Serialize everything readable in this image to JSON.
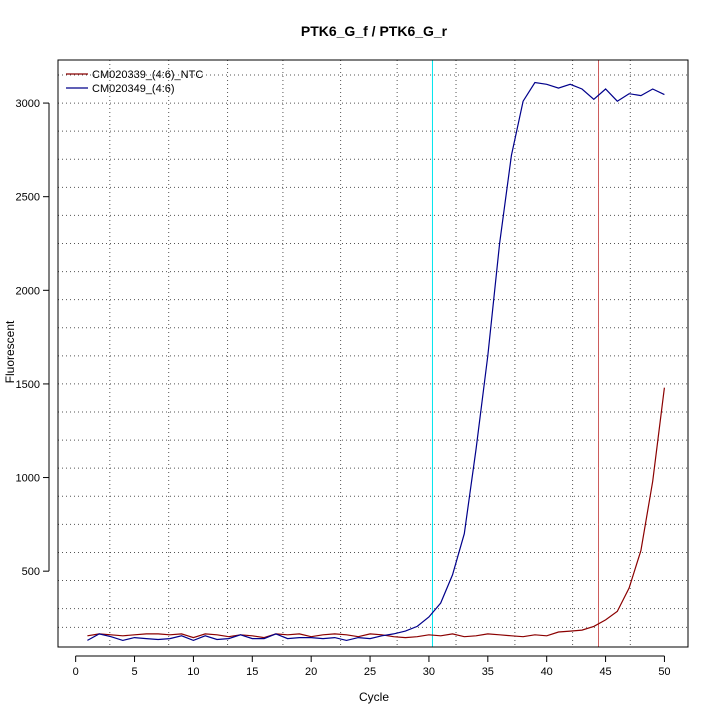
{
  "chart_data": {
    "type": "line",
    "title": "PTK6_G_f / PTK6_G_r",
    "xlabel": "Cycle",
    "ylabel": "Fluorescent",
    "xlim": [
      -1.5,
      52
    ],
    "ylim": [
      95,
      3230
    ],
    "x_ticks": [
      0,
      5,
      10,
      15,
      20,
      25,
      30,
      35,
      40,
      45,
      50
    ],
    "y_ticks": [
      500,
      1000,
      1500,
      2000,
      2500,
      3000
    ],
    "grid": true,
    "grid_style": "dotted",
    "vertical_grid": [
      2.9,
      7.9,
      12.9,
      17.6,
      22.5,
      27.3,
      32.3,
      37.3,
      42.2,
      47.1
    ],
    "horizontal_grid": [
      200,
      300,
      450,
      600,
      750,
      900,
      1050,
      1200,
      1350,
      1500,
      1650,
      1800,
      1950,
      2100,
      2250,
      2400,
      2550,
      2700,
      2850,
      3000,
      3150
    ],
    "legend_position": "top-left",
    "x": [
      1,
      2,
      3,
      4,
      5,
      6,
      7,
      8,
      9,
      10,
      11,
      12,
      13,
      14,
      15,
      16,
      17,
      18,
      19,
      20,
      21,
      22,
      23,
      24,
      25,
      26,
      27,
      28,
      29,
      30,
      31,
      32,
      33,
      34,
      35,
      36,
      37,
      38,
      39,
      40,
      41,
      42,
      43,
      44,
      45,
      46,
      47,
      48,
      49,
      50
    ],
    "series": [
      {
        "name": "CM020339_(4:6)_NTC",
        "color": "#8B0000",
        "values": [
          155,
          165,
          160,
          155,
          160,
          165,
          165,
          160,
          165,
          145,
          165,
          160,
          150,
          160,
          155,
          145,
          165,
          160,
          165,
          150,
          160,
          165,
          160,
          150,
          165,
          160,
          150,
          145,
          150,
          160,
          155,
          165,
          150,
          155,
          165,
          160,
          155,
          150,
          160,
          155,
          175,
          180,
          185,
          205,
          240,
          285,
          410,
          610,
          980,
          1480
        ]
      },
      {
        "name": "CM020349_(4:6)",
        "color": "#00008B",
        "values": [
          130,
          165,
          150,
          130,
          145,
          140,
          135,
          140,
          155,
          130,
          155,
          135,
          140,
          160,
          140,
          140,
          165,
          140,
          145,
          145,
          140,
          145,
          130,
          145,
          140,
          155,
          165,
          180,
          205,
          255,
          330,
          480,
          700,
          1150,
          1650,
          2250,
          2720,
          3010,
          3110,
          3100,
          3080,
          3100,
          3075,
          3020,
          3075,
          3010,
          3050,
          3040,
          3075,
          3045
        ]
      }
    ],
    "annotations": {
      "vline_cyan": {
        "x": 30.3,
        "color": "#00E5EE"
      },
      "vline_red": {
        "x": 44.4,
        "color": "#CD5C5C"
      }
    }
  }
}
